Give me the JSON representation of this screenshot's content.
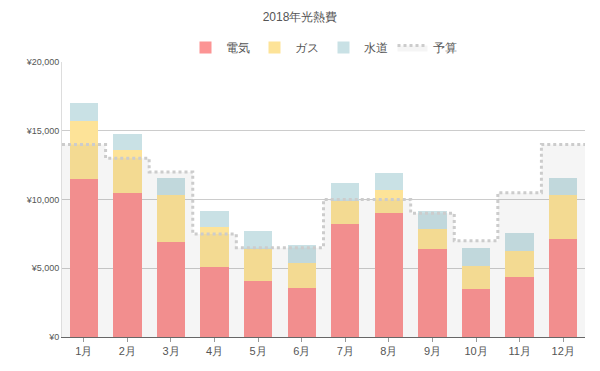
{
  "chart_data": {
    "type": "bar",
    "title": "2018年光熱費",
    "categories": [
      "1月",
      "2月",
      "3月",
      "4月",
      "5月",
      "6月",
      "7月",
      "8月",
      "9月",
      "10月",
      "11月",
      "12月"
    ],
    "series": [
      {
        "name": "予算",
        "type": "line",
        "line_style": "dotted",
        "color": "#cccccc",
        "values": [
          14000,
          13000,
          12000,
          7500,
          6500,
          6500,
          10000,
          10000,
          9000,
          7000,
          10500,
          14000
        ]
      },
      {
        "name": "電気",
        "type": "bar",
        "color": "#fc9494",
        "values": [
          11500,
          10500,
          6900,
          5100,
          4100,
          3600,
          8200,
          9000,
          6400,
          3500,
          4400,
          7100
        ]
      },
      {
        "name": "ガス",
        "type": "bar",
        "color": "#fde398",
        "values": [
          4200,
          3100,
          3400,
          2900,
          2300,
          1800,
          1700,
          1700,
          1450,
          1700,
          1850,
          3200
        ]
      },
      {
        "name": "水道",
        "type": "bar",
        "color": "#c9e1e5",
        "values": [
          1300,
          1200,
          1300,
          1200,
          1300,
          1300,
          1300,
          1200,
          1300,
          1300,
          1300,
          1250
        ]
      }
    ],
    "stacked": true,
    "ylim": [
      0,
      20000
    ],
    "yticks": [
      {
        "value": 0,
        "label": "¥0"
      },
      {
        "value": 5000,
        "label": "¥5,000"
      },
      {
        "value": 10000,
        "label": "¥10,000"
      },
      {
        "value": 15000,
        "label": "¥15,000"
      },
      {
        "value": 20000,
        "label": "¥20,000"
      }
    ],
    "grid": true,
    "legend": "top"
  }
}
